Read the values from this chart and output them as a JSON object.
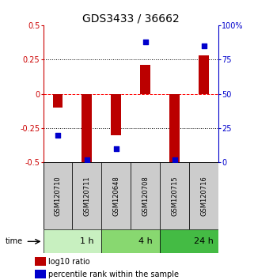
{
  "title": "GDS3433 / 36662",
  "samples": [
    "GSM120710",
    "GSM120711",
    "GSM120648",
    "GSM120708",
    "GSM120715",
    "GSM120716"
  ],
  "log10_ratio": [
    -0.1,
    -0.5,
    -0.3,
    0.21,
    -0.5,
    0.28
  ],
  "percentile_rank": [
    20,
    2,
    10,
    88,
    2,
    85
  ],
  "ylim_left": [
    -0.5,
    0.5
  ],
  "ylim_right": [
    0,
    100
  ],
  "yticks_left": [
    -0.5,
    -0.25,
    0,
    0.25,
    0.5
  ],
  "yticks_right": [
    0,
    25,
    50,
    75,
    100
  ],
  "ytick_labels_left": [
    "-0.5",
    "-0.25",
    "0",
    "0.25",
    "0.5"
  ],
  "ytick_labels_right": [
    "0",
    "25",
    "50",
    "75",
    "100%"
  ],
  "time_groups": [
    {
      "label": "1 h",
      "start": 0,
      "end": 2,
      "color": "#c8f0c0"
    },
    {
      "label": "4 h",
      "start": 2,
      "end": 4,
      "color": "#88d870"
    },
    {
      "label": "24 h",
      "start": 4,
      "end": 6,
      "color": "#44bb44"
    }
  ],
  "bar_color": "#bb0000",
  "dot_color": "#0000cc",
  "bar_width": 0.35,
  "dot_size": 18,
  "left_axis_color": "#cc0000",
  "right_axis_color": "#0000cc",
  "title_fontsize": 10,
  "tick_fontsize": 7,
  "sample_label_fontsize": 6,
  "time_label_fontsize": 8,
  "legend_fontsize": 7,
  "sample_box_color": "#cccccc"
}
